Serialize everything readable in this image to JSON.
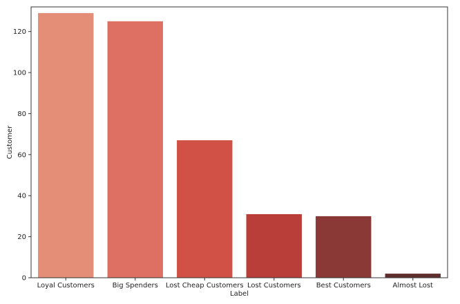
{
  "chart_data": {
    "type": "bar",
    "categories": [
      "Loyal Customers",
      "Big Spenders",
      "Lost Cheap Customers",
      "Lost Customers",
      "Best Customers",
      "Almost Lost"
    ],
    "values": [
      129,
      125,
      67,
      31,
      30,
      2
    ],
    "colors": [
      "#e58e77",
      "#dd7062",
      "#d25146",
      "#b93d38",
      "#8b3937",
      "#5e2f2e"
    ],
    "xlabel": "Label",
    "ylabel": "Customer",
    "ylim": [
      0,
      132
    ],
    "yticks": [
      0,
      20,
      40,
      60,
      80,
      100,
      120
    ],
    "grid": false
  }
}
